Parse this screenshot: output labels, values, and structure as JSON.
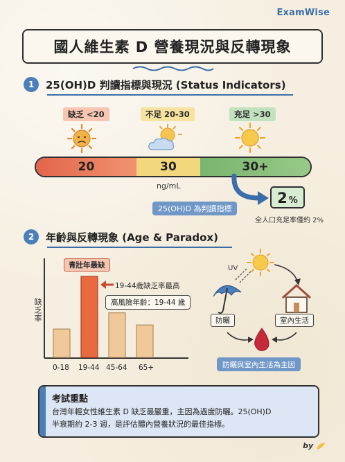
{
  "brand": "ExamWise",
  "title": "國人維生素 D 營養現況與反轉現象",
  "section1": {
    "number": "1",
    "title": "25(OH)D 判讀指標與現況 (Status Indicators)",
    "levels": [
      {
        "tag": "缺乏 <20",
        "value": "20",
        "icon": "sad-sun-icon"
      },
      {
        "tag": "不足 20-30",
        "value": "30",
        "icon": "sun-cloud-icon"
      },
      {
        "tag": "充足 >30",
        "value": "30+",
        "icon": "sun-icon"
      }
    ],
    "unit": "ng/mL",
    "indicator_label": "25(OH)D 為判讀指標",
    "percent_value": "2",
    "percent_sign": "%",
    "percent_caption": "全人口充足率僅約 2%"
  },
  "section2": {
    "number": "2",
    "title": "年齡與反轉現象 (Age & Paradox)",
    "ylabel": "缺乏率",
    "peak_label": "青壯年最缺",
    "arrow_note": "19-44歲缺乏率最高",
    "risk_note": "高風險年齡：19-44 歲",
    "uv_label": "UV",
    "cycle": {
      "sunscreen": "防曬",
      "indoor": "室內生活",
      "cause": "防曬與室內生活為主因"
    }
  },
  "chart_data": {
    "type": "bar",
    "categories": [
      "0-18",
      "19-44",
      "45-64",
      "65+"
    ],
    "values": [
      35,
      100,
      55,
      40
    ],
    "highlight": "19-44",
    "ylabel": "缺乏率",
    "ylim": [
      0,
      110
    ],
    "grid": false,
    "colors": {
      "normal": "#f0c99a",
      "highlight": "#e86a3e"
    }
  },
  "exam": {
    "title": "考試重點",
    "line1": "台灣年輕女性維生素 D 缺乏最嚴重，主因為過度防曬。25(OH)D",
    "line2": "半衰期約 2-3 週，是評估體內營養狀況的最佳指標。"
  },
  "signature": "by"
}
